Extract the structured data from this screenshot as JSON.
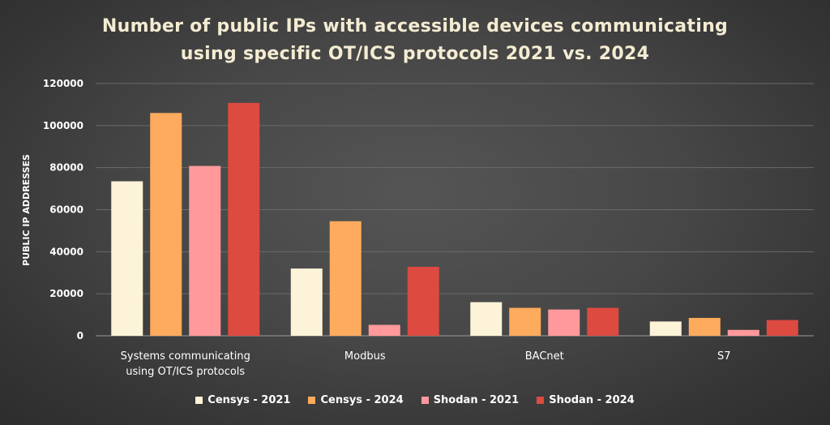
{
  "chart_data": {
    "type": "bar",
    "title_lines": [
      "Number of public IPs with accessible devices communicating",
      "using specific OT/ICS protocols 2021 vs. 2024"
    ],
    "xlabel": "",
    "ylabel": "PUBLIC IP ADDRESSES",
    "ylim": [
      0,
      120000
    ],
    "yticks": [
      0,
      20000,
      40000,
      60000,
      80000,
      100000,
      120000
    ],
    "grid": true,
    "legend_position": "bottom",
    "categories": [
      [
        "Systems communicating",
        "using OT/ICS protocols"
      ],
      [
        "Modbus"
      ],
      [
        "BACnet"
      ],
      [
        "S7"
      ]
    ],
    "series": [
      {
        "name": "Censys - 2021",
        "color": "#fdf3d8",
        "values": [
          73500,
          32000,
          16000,
          6800
        ]
      },
      {
        "name": "Censys - 2024",
        "color": "#ffab5e",
        "values": [
          106000,
          54500,
          13300,
          8500
        ]
      },
      {
        "name": "Shodan - 2021",
        "color": "#ff999b",
        "values": [
          80800,
          5200,
          12500,
          2800
        ]
      },
      {
        "name": "Shodan - 2024",
        "color": "#dc4a40",
        "values": [
          110800,
          32800,
          13300,
          7500
        ]
      }
    ]
  }
}
